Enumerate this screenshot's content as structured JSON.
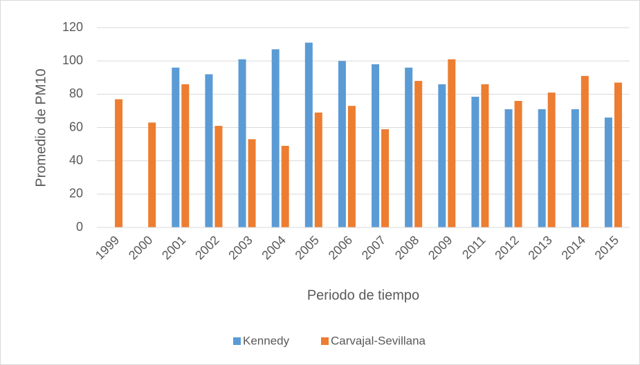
{
  "chart_data": {
    "type": "bar",
    "categories": [
      "1999",
      "2000",
      "2001",
      "2002",
      "2003",
      "2004",
      "2005",
      "2006",
      "2007",
      "2008",
      "2009",
      "2011",
      "2012",
      "2013",
      "2014",
      "2015"
    ],
    "series": [
      {
        "name": "Kennedy",
        "color": "#5b9bd5",
        "values": [
          null,
          null,
          96,
          92,
          101,
          107,
          111,
          100,
          98,
          96,
          86,
          78.5,
          71,
          71,
          71,
          66
        ]
      },
      {
        "name": "Carvajal-Sevillana",
        "color": "#ed7d31",
        "values": [
          77,
          63,
          86,
          61,
          53,
          49,
          69,
          73,
          59,
          88,
          101,
          86,
          76,
          81,
          91,
          87
        ]
      }
    ],
    "xlabel": "Periodo de tiempo",
    "ylabel": "Promedio de PM10",
    "ylim": [
      0,
      120
    ],
    "yticks": [
      0,
      20,
      40,
      60,
      80,
      100,
      120
    ],
    "grid": true,
    "legend": "bottom"
  }
}
